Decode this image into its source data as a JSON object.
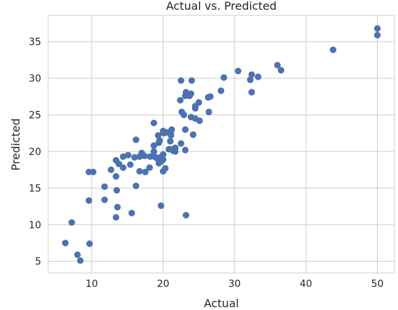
{
  "chart_data": {
    "type": "scatter",
    "title": "Actual vs. Predicted",
    "xlabel": "Actual",
    "ylabel": "Predicted",
    "xlim": [
      3.9,
      52.4
    ],
    "ylim": [
      3.4,
      38.6
    ],
    "xticks": [
      10,
      20,
      30,
      40,
      50
    ],
    "yticks": [
      5,
      10,
      15,
      20,
      25,
      30,
      35
    ],
    "grid": true,
    "point_color": "#4c72b0",
    "points": [
      [
        50.0,
        36.8
      ],
      [
        50.0,
        35.9
      ],
      [
        43.8,
        33.9
      ],
      [
        36.0,
        31.8
      ],
      [
        36.5,
        31.1
      ],
      [
        33.3,
        30.2
      ],
      [
        32.2,
        29.8
      ],
      [
        32.4,
        30.5
      ],
      [
        30.5,
        31.0
      ],
      [
        28.5,
        30.1
      ],
      [
        32.4,
        28.1
      ],
      [
        28.1,
        28.3
      ],
      [
        26.6,
        27.5
      ],
      [
        26.3,
        27.4
      ],
      [
        25.0,
        26.7
      ],
      [
        24.5,
        26.2
      ],
      [
        24.5,
        25.9
      ],
      [
        26.4,
        25.4
      ],
      [
        22.5,
        29.7
      ],
      [
        24.0,
        29.7
      ],
      [
        23.2,
        28.1
      ],
      [
        23.9,
        27.9
      ],
      [
        23.1,
        27.6
      ],
      [
        23.7,
        27.6
      ],
      [
        22.4,
        27.0
      ],
      [
        22.6,
        25.4
      ],
      [
        22.9,
        25.0
      ],
      [
        23.9,
        24.7
      ],
      [
        24.5,
        24.5
      ],
      [
        25.1,
        24.2
      ],
      [
        23.1,
        23.0
      ],
      [
        24.2,
        22.3
      ],
      [
        18.7,
        23.9
      ],
      [
        20.0,
        22.8
      ],
      [
        20.1,
        22.5
      ],
      [
        20.6,
        22.6
      ],
      [
        21.2,
        23.0
      ],
      [
        21.1,
        22.4
      ],
      [
        21.1,
        22.2
      ],
      [
        19.3,
        22.2
      ],
      [
        19.5,
        21.5
      ],
      [
        19.4,
        21.2
      ],
      [
        21.0,
        21.4
      ],
      [
        22.5,
        21.1
      ],
      [
        16.2,
        21.6
      ],
      [
        18.7,
        20.8
      ],
      [
        18.7,
        20.0
      ],
      [
        20.8,
        20.3
      ],
      [
        21.2,
        20.3
      ],
      [
        21.4,
        20.1
      ],
      [
        21.7,
        20.0
      ],
      [
        21.7,
        20.5
      ],
      [
        23.1,
        20.2
      ],
      [
        17.0,
        19.8
      ],
      [
        15.1,
        19.5
      ],
      [
        14.4,
        19.3
      ],
      [
        16.0,
        19.2
      ],
      [
        16.7,
        19.3
      ],
      [
        17.4,
        19.4
      ],
      [
        18.2,
        19.3
      ],
      [
        18.8,
        19.3
      ],
      [
        19.1,
        19.1
      ],
      [
        19.6,
        19.2
      ],
      [
        20.0,
        19.6
      ],
      [
        19.7,
        18.6
      ],
      [
        19.4,
        18.4
      ],
      [
        20.0,
        18.9
      ],
      [
        13.4,
        18.8
      ],
      [
        13.8,
        18.3
      ],
      [
        15.4,
        18.2
      ],
      [
        14.4,
        17.8
      ],
      [
        18.1,
        17.8
      ],
      [
        12.7,
        17.5
      ],
      [
        16.7,
        17.3
      ],
      [
        17.5,
        17.2
      ],
      [
        20.3,
        17.7
      ],
      [
        20.0,
        17.3
      ],
      [
        9.6,
        17.2
      ],
      [
        10.2,
        17.2
      ],
      [
        13.4,
        16.6
      ],
      [
        11.8,
        15.2
      ],
      [
        16.2,
        15.3
      ],
      [
        13.5,
        14.7
      ],
      [
        9.6,
        13.3
      ],
      [
        11.8,
        13.4
      ],
      [
        13.6,
        12.4
      ],
      [
        19.7,
        12.6
      ],
      [
        15.6,
        11.6
      ],
      [
        13.4,
        11.0
      ],
      [
        23.2,
        11.3
      ],
      [
        7.2,
        10.3
      ],
      [
        6.3,
        7.5
      ],
      [
        9.7,
        7.4
      ],
      [
        8.0,
        5.9
      ],
      [
        8.4,
        5.1
      ]
    ]
  }
}
